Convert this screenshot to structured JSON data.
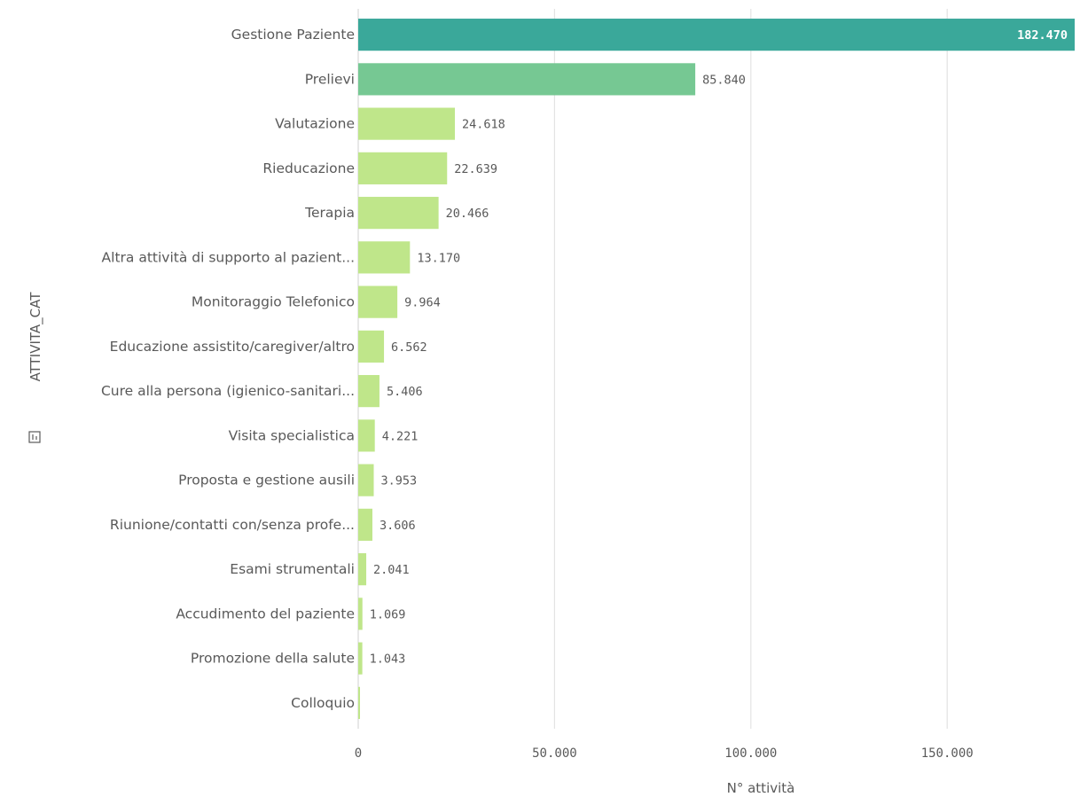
{
  "chart_data": {
    "type": "bar",
    "orientation": "horizontal",
    "categories": [
      "Gestione Paziente",
      "Prelievi",
      "Valutazione",
      "Rieducazione",
      "Terapia",
      "Altra attività di supporto al pazient...",
      "Monitoraggio Telefonico",
      "Educazione assistito/caregiver/altro",
      "Cure alla persona (igienico-sanitari...",
      "Visita specialistica",
      "Proposta e gestione ausili",
      "Riunione/contatti con/senza profe...",
      "Esami strumentali",
      "Accudimento del paziente",
      "Promozione della salute",
      "Colloquio"
    ],
    "values": [
      182470,
      85840,
      24618,
      22639,
      20466,
      13170,
      9964,
      6562,
      5406,
      4221,
      3953,
      3606,
      2041,
      1069,
      1043,
      300
    ],
    "value_labels": [
      "182.470",
      "85.840",
      "24.618",
      "22.639",
      "20.466",
      "13.170",
      "9.964",
      "6.562",
      "5.406",
      "4.221",
      "3.953",
      "3.606",
      "2.041",
      "1.069",
      "1.043",
      ""
    ],
    "bar_colors": [
      "#3aa89a",
      "#76c893",
      "#bfe68a",
      "#bfe68a",
      "#bfe68a",
      "#bfe68a",
      "#bfe68a",
      "#bfe68a",
      "#bfe68a",
      "#bfe68a",
      "#bfe68a",
      "#bfe68a",
      "#bfe68a",
      "#bfe68a",
      "#bfe68a",
      "#bfe68a"
    ],
    "xlim": [
      0,
      182470
    ],
    "xticks": [
      0,
      50000,
      100000,
      150000
    ],
    "xtick_labels": [
      "0",
      "50.000",
      "100.000",
      "150.000"
    ],
    "xlabel": "N° attività",
    "ylabel": "ATTIVITA_CAT",
    "grid": true,
    "ylabel_icon": "sort-icon"
  }
}
